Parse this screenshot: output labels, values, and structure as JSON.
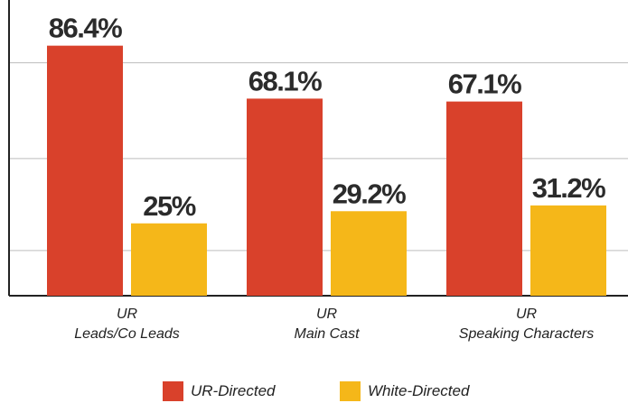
{
  "chart_data": {
    "type": "bar",
    "categories": [
      "UR\nLeads/Co Leads",
      "UR\nMain Cast",
      "UR\nSpeaking Characters"
    ],
    "series": [
      {
        "name": "UR-Directed",
        "color": "#d9412b",
        "values": [
          86.4,
          68.1,
          67.1
        ],
        "value_labels": [
          "86.4%",
          "68.1%",
          "67.1%"
        ]
      },
      {
        "name": "White-Directed",
        "color": "#f5b719",
        "values": [
          25,
          29.2,
          31.2
        ],
        "value_labels": [
          "25%",
          "29.2%",
          "31.2%"
        ]
      }
    ],
    "ylim": [
      0,
      100
    ],
    "yticks": [
      15.6,
      47.4,
      80.5
    ],
    "grid": true
  }
}
